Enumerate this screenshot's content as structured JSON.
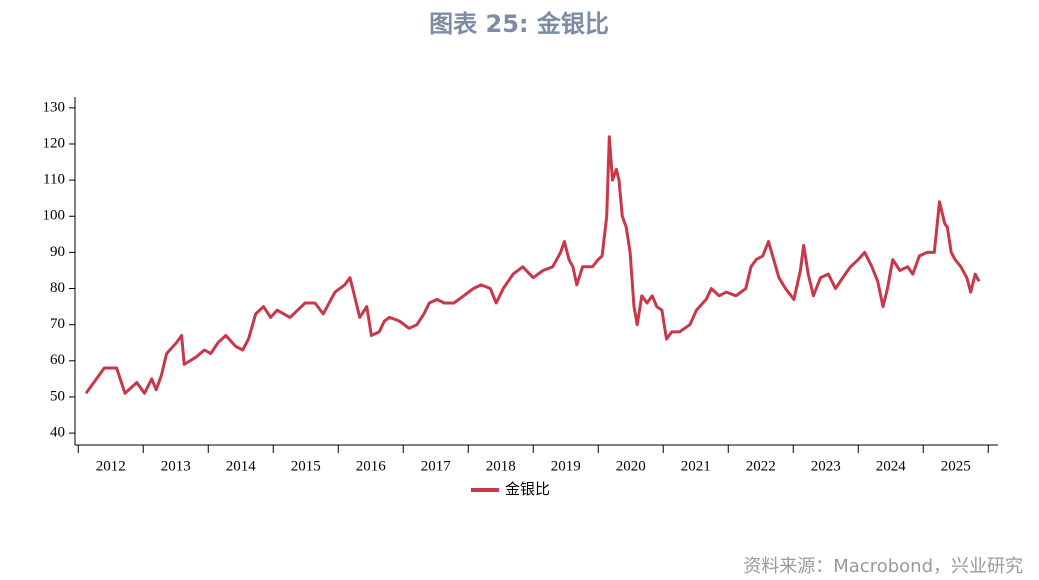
{
  "chart_data": {
    "type": "line",
    "title": "图表 25: 金银比",
    "source": "资料来源：Macrobond，兴业研究",
    "xlim": [
      2011.95,
      2026.15
    ],
    "ylim": [
      36.7,
      133
    ],
    "yticks": [
      40,
      50,
      60,
      70,
      80,
      90,
      100,
      110,
      120,
      130
    ],
    "xticks": [
      {
        "value": 2012.5,
        "label": "2012"
      },
      {
        "value": 2013.5,
        "label": "2013"
      },
      {
        "value": 2014.5,
        "label": "2014"
      },
      {
        "value": 2015.5,
        "label": "2015"
      },
      {
        "value": 2016.5,
        "label": "2016"
      },
      {
        "value": 2017.5,
        "label": "2017"
      },
      {
        "value": 2018.5,
        "label": "2018"
      },
      {
        "value": 2019.5,
        "label": "2019"
      },
      {
        "value": 2020.5,
        "label": "2020"
      },
      {
        "value": 2021.5,
        "label": "2021"
      },
      {
        "value": 2022.5,
        "label": "2022"
      },
      {
        "value": 2023.5,
        "label": "2023"
      },
      {
        "value": 2024.5,
        "label": "2024"
      },
      {
        "value": 2025.5,
        "label": "2025"
      }
    ],
    "x": [
      2012.12,
      2012.4,
      2012.59,
      2012.72,
      2012.9,
      2013.02,
      2013.13,
      2013.2,
      2013.28,
      2013.36,
      2013.51,
      2013.59,
      2013.63,
      2013.81,
      2013.94,
      2014.04,
      2014.15,
      2014.27,
      2014.42,
      2014.53,
      2014.62,
      2014.73,
      2014.85,
      2014.96,
      2015.06,
      2015.26,
      2015.49,
      2015.64,
      2015.77,
      2015.95,
      2016.1,
      2016.18,
      2016.25,
      2016.33,
      2016.44,
      2016.51,
      2016.63,
      2016.71,
      2016.79,
      2016.94,
      2017.09,
      2017.21,
      2017.32,
      2017.4,
      2017.52,
      2017.63,
      2017.78,
      2017.93,
      2018.08,
      2018.2,
      2018.34,
      2018.43,
      2018.54,
      2018.69,
      2018.84,
      2019.0,
      2019.15,
      2019.3,
      2019.42,
      2019.48,
      2019.55,
      2019.61,
      2019.67,
      2019.76,
      2019.91,
      2020.0,
      2020.06,
      2020.13,
      2020.17,
      2020.22,
      2020.28,
      2020.32,
      2020.37,
      2020.43,
      2020.49,
      2020.55,
      2020.6,
      2020.67,
      2020.75,
      2020.83,
      2020.9,
      2020.98,
      2021.05,
      2021.13,
      2021.25,
      2021.41,
      2021.51,
      2021.66,
      2021.74,
      2021.86,
      2021.97,
      2022.12,
      2022.27,
      2022.35,
      2022.43,
      2022.53,
      2022.62,
      2022.7,
      2022.78,
      2022.88,
      2023.01,
      2023.11,
      2023.16,
      2023.23,
      2023.31,
      2023.42,
      2023.54,
      2023.65,
      2023.8,
      2023.88,
      2024.0,
      2024.1,
      2024.21,
      2024.3,
      2024.38,
      2024.45,
      2024.53,
      2024.64,
      2024.76,
      2024.84,
      2024.94,
      2025.06,
      2025.17,
      2025.25,
      2025.33,
      2025.37,
      2025.43,
      2025.49,
      2025.58,
      2025.67,
      2025.73,
      2025.8,
      2025.86
    ],
    "series": [
      {
        "name": "金银比",
        "color": "#c8374a",
        "values": [
          51,
          58,
          58,
          51,
          54,
          51,
          55,
          52,
          56,
          62,
          65,
          67,
          59,
          61,
          63,
          62,
          65,
          67,
          64,
          63,
          66,
          73,
          75,
          72,
          74,
          72,
          76,
          76,
          73,
          79,
          81,
          83,
          78,
          72,
          75,
          67,
          68,
          71,
          72,
          71,
          69,
          70,
          73,
          76,
          77,
          76,
          76,
          78,
          80,
          81,
          80,
          76,
          80,
          84,
          86,
          83,
          85,
          86,
          90,
          93,
          88,
          86,
          81,
          86,
          86,
          88,
          89,
          100,
          122,
          110,
          113,
          110,
          100,
          97,
          90,
          75,
          70,
          78,
          76,
          78,
          75,
          74,
          66,
          68,
          68,
          70,
          74,
          77,
          80,
          78,
          79,
          78,
          80,
          86,
          88,
          89,
          93,
          88,
          83,
          80,
          77,
          85,
          92,
          84,
          78,
          83,
          84,
          80,
          84,
          86,
          88,
          90,
          86,
          82,
          75,
          80,
          88,
          85,
          86,
          84,
          89,
          90,
          90,
          104,
          98,
          97,
          90,
          88,
          86,
          83,
          79,
          84,
          82
        ]
      }
    ]
  }
}
